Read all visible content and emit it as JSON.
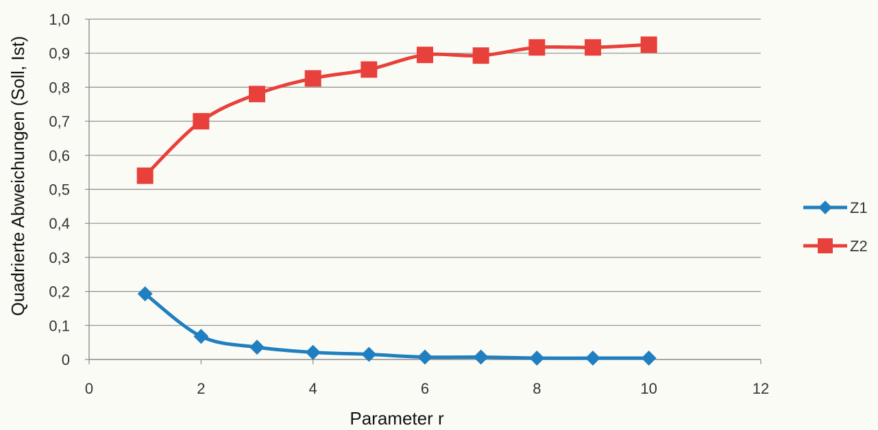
{
  "chart_data": {
    "type": "line",
    "title": "",
    "xlabel": "Parameter r",
    "ylabel": "Quadrierte Abweichungen (Soll, Ist)",
    "xlim": [
      0,
      12
    ],
    "ylim": [
      0,
      1.0
    ],
    "x_ticks": [
      "0",
      "2",
      "4",
      "6",
      "8",
      "10",
      "12"
    ],
    "y_ticks": [
      "0",
      "0,1",
      "0,2",
      "0,3",
      "0,4",
      "0,5",
      "0,6",
      "0,7",
      "0,8",
      "0,9",
      "1,0"
    ],
    "grid": true,
    "legend_position": "right",
    "series": [
      {
        "name": "Z1",
        "color": "#1f7fc0",
        "marker": "diamond",
        "x": [
          1,
          2,
          3,
          4,
          5,
          6,
          7,
          8,
          9,
          10
        ],
        "values": [
          0.193,
          0.068,
          0.036,
          0.021,
          0.015,
          0.007,
          0.007,
          0.004,
          0.004,
          0.004
        ]
      },
      {
        "name": "Z2",
        "color": "#e8403a",
        "marker": "square",
        "x": [
          1,
          2,
          3,
          4,
          5,
          6,
          7,
          8,
          9,
          10
        ],
        "values": [
          0.54,
          0.7,
          0.78,
          0.826,
          0.852,
          0.895,
          0.893,
          0.917,
          0.917,
          0.925
        ]
      }
    ]
  }
}
